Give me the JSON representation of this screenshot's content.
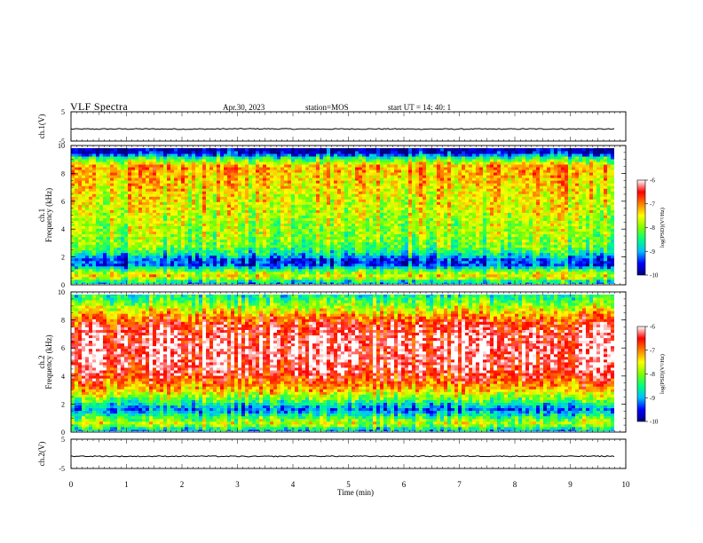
{
  "header": {
    "title": "VLF Spectra",
    "date": "Apr.30, 2023",
    "station": "station=MOS",
    "start": "start  UT =   14: 40: 1"
  },
  "chart_data": [
    {
      "type": "line",
      "ylabel": "ch.1(V)",
      "ylim": [
        -5,
        5
      ],
      "yticks": [
        "5",
        "-5"
      ],
      "series": [
        {
          "values": [
            -0.9,
            -0.85,
            -0.9,
            -0.8,
            -0.9,
            -0.85,
            -0.9,
            -0.9,
            -0.85,
            -0.9
          ]
        }
      ]
    },
    {
      "type": "heatmap",
      "ylabel_line1": "ch.1",
      "ylabel_line2": "Frequency (kHz)",
      "ylim": [
        0,
        10
      ],
      "yticks": [
        "0",
        "2",
        "4",
        "6",
        "8",
        "10"
      ],
      "colorbar": {
        "label": "log(PSD)(V²/Hz)",
        "ticks": [
          "-6",
          "-7",
          "-8",
          "-9",
          "-10"
        ],
        "range": [
          -10,
          -6
        ]
      },
      "colormap": [
        "#00007f",
        "#0000ff",
        "#00bfff",
        "#00ff7f",
        "#7fff00",
        "#ffff00",
        "#ff7f00",
        "#ff0000",
        "#ffffff"
      ],
      "profile": [
        {
          "f": 0.2,
          "v": -8.8
        },
        {
          "f": 0.6,
          "v": -7.4
        },
        {
          "f": 1.0,
          "v": -8.0
        },
        {
          "f": 1.4,
          "v": -9.3
        },
        {
          "f": 1.8,
          "v": -9.4
        },
        {
          "f": 2.2,
          "v": -8.7
        },
        {
          "f": 2.8,
          "v": -8.1
        },
        {
          "f": 3.5,
          "v": -7.9
        },
        {
          "f": 4.5,
          "v": -7.8
        },
        {
          "f": 5.5,
          "v": -7.6
        },
        {
          "f": 6.5,
          "v": -7.5
        },
        {
          "f": 7.5,
          "v": -7.3
        },
        {
          "f": 8.5,
          "v": -7.1
        },
        {
          "f": 9.1,
          "v": -8.4
        },
        {
          "f": 9.5,
          "v": -9.7
        },
        {
          "f": 9.9,
          "v": -10.0
        }
      ]
    },
    {
      "type": "heatmap",
      "ylabel_line1": "ch.2",
      "ylabel_line2": "Frequency (kHz)",
      "ylim": [
        0,
        10
      ],
      "yticks": [
        "0",
        "2",
        "4",
        "6",
        "8",
        "10"
      ],
      "colorbar": {
        "label": "log(PSD)(V²/Hz)",
        "ticks": [
          "-6",
          "-7",
          "-8",
          "-9",
          "-10"
        ],
        "range": [
          -10,
          -6
        ]
      },
      "colormap": [
        "#00007f",
        "#0000ff",
        "#00bfff",
        "#00ff7f",
        "#7fff00",
        "#ffff00",
        "#ff7f00",
        "#ff0000",
        "#ffffff"
      ],
      "profile": [
        {
          "f": 0.2,
          "v": -8.8
        },
        {
          "f": 0.6,
          "v": -7.6
        },
        {
          "f": 1.1,
          "v": -8.3
        },
        {
          "f": 1.6,
          "v": -9.2
        },
        {
          "f": 2.1,
          "v": -8.5
        },
        {
          "f": 2.6,
          "v": -7.8
        },
        {
          "f": 3.1,
          "v": -7.2
        },
        {
          "f": 3.6,
          "v": -6.8
        },
        {
          "f": 4.5,
          "v": -6.3
        },
        {
          "f": 5.5,
          "v": -6.2
        },
        {
          "f": 6.5,
          "v": -6.2
        },
        {
          "f": 7.5,
          "v": -6.4
        },
        {
          "f": 8.2,
          "v": -6.9
        },
        {
          "f": 8.8,
          "v": -7.6
        },
        {
          "f": 9.4,
          "v": -8.2
        },
        {
          "f": 9.9,
          "v": -8.6
        }
      ]
    },
    {
      "type": "line",
      "ylabel": "ch.2(V)",
      "ylim": [
        -5,
        5
      ],
      "yticks": [
        "5",
        "-5"
      ],
      "xlabel": "Time (min)",
      "xlim": [
        0,
        10
      ],
      "xticks": [
        "0",
        "1",
        "2",
        "3",
        "4",
        "5",
        "6",
        "7",
        "8",
        "9",
        "10"
      ],
      "series": [
        {
          "values": [
            -0.8,
            -0.85,
            -0.8,
            -0.9,
            -0.8,
            -0.85,
            -0.8,
            -0.8,
            -0.85,
            -0.8
          ]
        }
      ]
    }
  ]
}
